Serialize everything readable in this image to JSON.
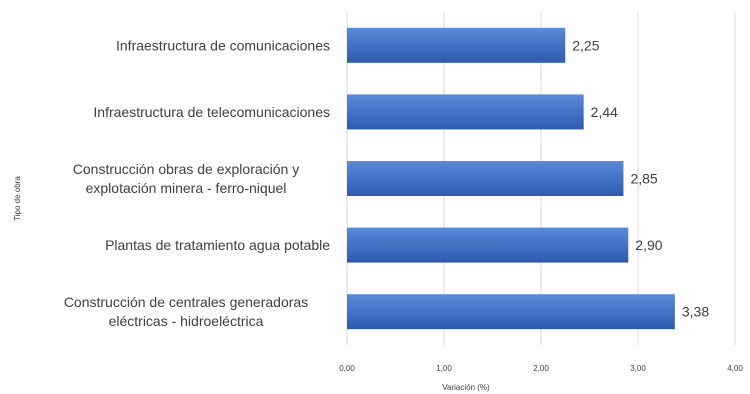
{
  "chart_data": {
    "type": "bar",
    "orientation": "horizontal",
    "categories": [
      [
        "Infraestructura de comunicaciones"
      ],
      [
        "Infraestructura de telecomunicaciones"
      ],
      [
        "Construcción obras de exploración y",
        "explotación minera - ferro-niquel"
      ],
      [
        "Plantas de tratamiento agua potable"
      ],
      [
        "Construcción de centrales generadoras",
        "eléctricas - hidroeléctrica"
      ]
    ],
    "values": [
      2.25,
      2.44,
      2.85,
      2.9,
      3.38
    ],
    "value_labels": [
      "2,25",
      "2,44",
      "2,85",
      "2,90",
      "3,38"
    ],
    "xlim": [
      0,
      4
    ],
    "x_ticks": [
      0,
      1,
      2,
      3,
      4
    ],
    "x_tick_labels": [
      "0,00",
      "1,00",
      "2,00",
      "3,00",
      "4,00"
    ],
    "xlabel": "Variación (%)",
    "ylabel": "Tipo de obra",
    "grid": "vertical",
    "bar_color": "#4472C4",
    "bar_color_light": "#5B8BD9",
    "bar_color_dark": "#2F5BAF",
    "grid_color": "#D9D9D9"
  }
}
